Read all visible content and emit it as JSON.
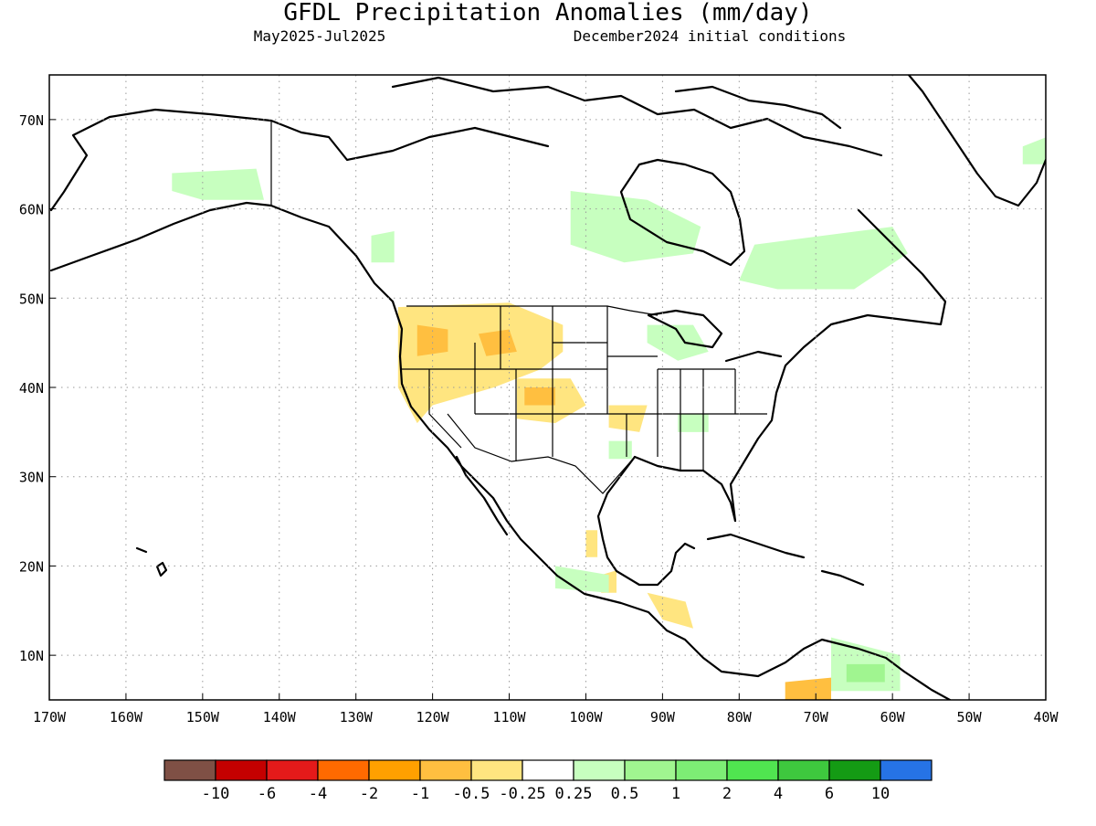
{
  "title": "GFDL Precipitation Anomalies (mm/day)",
  "period": "May2025-Jul2025",
  "init": "December2024 initial conditions",
  "map": {
    "lon_range": [
      -170,
      -40
    ],
    "lat_range": [
      5,
      75
    ],
    "lon_ticks": [
      {
        "lon": -170,
        "label": "170W"
      },
      {
        "lon": -160,
        "label": "160W"
      },
      {
        "lon": -150,
        "label": "150W"
      },
      {
        "lon": -140,
        "label": "140W"
      },
      {
        "lon": -130,
        "label": "130W"
      },
      {
        "lon": -120,
        "label": "120W"
      },
      {
        "lon": -110,
        "label": "110W"
      },
      {
        "lon": -100,
        "label": "100W"
      },
      {
        "lon": -90,
        "label": "90W"
      },
      {
        "lon": -80,
        "label": "80W"
      },
      {
        "lon": -70,
        "label": "70W"
      },
      {
        "lon": -60,
        "label": "60W"
      },
      {
        "lon": -50,
        "label": "50W"
      },
      {
        "lon": -40,
        "label": "40W"
      }
    ],
    "lat_ticks": [
      {
        "lat": 10,
        "label": "10N"
      },
      {
        "lat": 20,
        "label": "20N"
      },
      {
        "lat": 30,
        "label": "30N"
      },
      {
        "lat": 40,
        "label": "40N"
      },
      {
        "lat": 50,
        "label": "50N"
      },
      {
        "lat": 60,
        "label": "60N"
      },
      {
        "lat": 70,
        "label": "70N"
      }
    ],
    "grid": "dotted"
  },
  "colorbar": {
    "colors": [
      "#7f5045",
      "#c40000",
      "#e41a1a",
      "#ff6a00",
      "#ffa000",
      "#ffbf40",
      "#ffe580",
      "#ffffff",
      "#c7ffbf",
      "#a0f590",
      "#7ded75",
      "#50e550",
      "#3ec83e",
      "#149b14",
      "#2673e6"
    ],
    "labels": [
      "-10",
      "-6",
      "-4",
      "-2",
      "-1",
      "-0.5",
      "-0.25",
      "0.25",
      "0.5",
      "1",
      "2",
      "4",
      "6",
      "10"
    ]
  },
  "anomalies": [
    {
      "value": -0.5,
      "color": "#ffe580",
      "pts": [
        [
          -124.5,
          49
        ],
        [
          -110,
          49.5
        ],
        [
          -103,
          47
        ],
        [
          -103,
          44
        ],
        [
          -106,
          42
        ],
        [
          -112,
          40
        ],
        [
          -120,
          38
        ],
        [
          -122,
          36
        ],
        [
          -124.5,
          40
        ]
      ]
    },
    {
      "value": -0.5,
      "color": "#ffe580",
      "pts": [
        [
          -109,
          41
        ],
        [
          -102,
          41
        ],
        [
          -100,
          38
        ],
        [
          -104,
          36
        ],
        [
          -109,
          36.5
        ]
      ]
    },
    {
      "value": -0.5,
      "color": "#ffe580",
      "pts": [
        [
          -97,
          38
        ],
        [
          -92,
          38
        ],
        [
          -93,
          35
        ],
        [
          -97,
          35.5
        ]
      ]
    },
    {
      "value": -1,
      "color": "#ffbf40",
      "pts": [
        [
          -122,
          47
        ],
        [
          -118,
          46.5
        ],
        [
          -118,
          44
        ],
        [
          -122,
          43.5
        ]
      ]
    },
    {
      "value": -1,
      "color": "#ffbf40",
      "pts": [
        [
          -114,
          46
        ],
        [
          -110,
          46.5
        ],
        [
          -109,
          44
        ],
        [
          -113,
          43.5
        ]
      ]
    },
    {
      "value": -1,
      "color": "#ffbf40",
      "pts": [
        [
          -108,
          40
        ],
        [
          -104,
          40
        ],
        [
          -104,
          38
        ],
        [
          -108,
          38
        ]
      ]
    },
    {
      "value": -0.5,
      "color": "#ffe580",
      "pts": [
        [
          -100,
          24
        ],
        [
          -98.5,
          24
        ],
        [
          -98.5,
          21
        ],
        [
          -100,
          21
        ]
      ]
    },
    {
      "value": -0.5,
      "color": "#ffe580",
      "pts": [
        [
          -98,
          19
        ],
        [
          -96,
          19.5
        ],
        [
          -96,
          17
        ],
        [
          -98,
          17
        ]
      ]
    },
    {
      "value": -0.5,
      "color": "#ffe580",
      "pts": [
        [
          -92,
          17
        ],
        [
          -87,
          16
        ],
        [
          -86,
          13
        ],
        [
          -90,
          14
        ]
      ]
    },
    {
      "value": -1,
      "color": "#ffbf40",
      "pts": [
        [
          -74,
          7
        ],
        [
          -68,
          7.5
        ],
        [
          -68,
          5
        ],
        [
          -74,
          5
        ]
      ]
    },
    {
      "value": 0.5,
      "color": "#c7ffbf",
      "pts": [
        [
          -154,
          64
        ],
        [
          -143,
          64.5
        ],
        [
          -142,
          61
        ],
        [
          -150,
          61
        ],
        [
          -154,
          62
        ]
      ]
    },
    {
      "value": 0.5,
      "color": "#c7ffbf",
      "pts": [
        [
          -128,
          57
        ],
        [
          -125,
          57.5
        ],
        [
          -125,
          54
        ],
        [
          -128,
          54
        ]
      ]
    },
    {
      "value": 0.5,
      "color": "#c7ffbf",
      "pts": [
        [
          -102,
          62
        ],
        [
          -92,
          61
        ],
        [
          -85,
          58
        ],
        [
          -86,
          55
        ],
        [
          -95,
          54
        ],
        [
          -102,
          56
        ]
      ]
    },
    {
      "value": 0.5,
      "color": "#c7ffbf",
      "pts": [
        [
          -78,
          56
        ],
        [
          -60,
          58
        ],
        [
          -58,
          55
        ],
        [
          -65,
          51
        ],
        [
          -75,
          51
        ],
        [
          -80,
          52
        ]
      ]
    },
    {
      "value": 0.5,
      "color": "#c7ffbf",
      "pts": [
        [
          -92,
          47
        ],
        [
          -86,
          47
        ],
        [
          -84,
          44
        ],
        [
          -88,
          43
        ],
        [
          -92,
          45
        ]
      ]
    },
    {
      "value": 0.5,
      "color": "#c7ffbf",
      "pts": [
        [
          -88,
          37
        ],
        [
          -84,
          37
        ],
        [
          -84,
          35
        ],
        [
          -88,
          35
        ]
      ]
    },
    {
      "value": 0.5,
      "color": "#c7ffbf",
      "pts": [
        [
          -97,
          34
        ],
        [
          -94,
          34
        ],
        [
          -94,
          32
        ],
        [
          -97,
          32
        ]
      ]
    },
    {
      "value": 0.5,
      "color": "#c7ffbf",
      "pts": [
        [
          -104,
          20
        ],
        [
          -97,
          19
        ],
        [
          -97,
          17
        ],
        [
          -104,
          17.5
        ]
      ]
    },
    {
      "value": 0.5,
      "color": "#c7ffbf",
      "pts": [
        [
          -68,
          12
        ],
        [
          -59,
          10
        ],
        [
          -59,
          6
        ],
        [
          -68,
          6
        ]
      ]
    },
    {
      "value": 1,
      "color": "#a0f590",
      "pts": [
        [
          -66,
          9
        ],
        [
          -61,
          9
        ],
        [
          -61,
          7
        ],
        [
          -66,
          7
        ]
      ]
    },
    {
      "value": 0.5,
      "color": "#c7ffbf",
      "pts": [
        [
          -43,
          67
        ],
        [
          -40,
          68
        ],
        [
          -40,
          65
        ],
        [
          -43,
          65
        ]
      ]
    }
  ]
}
